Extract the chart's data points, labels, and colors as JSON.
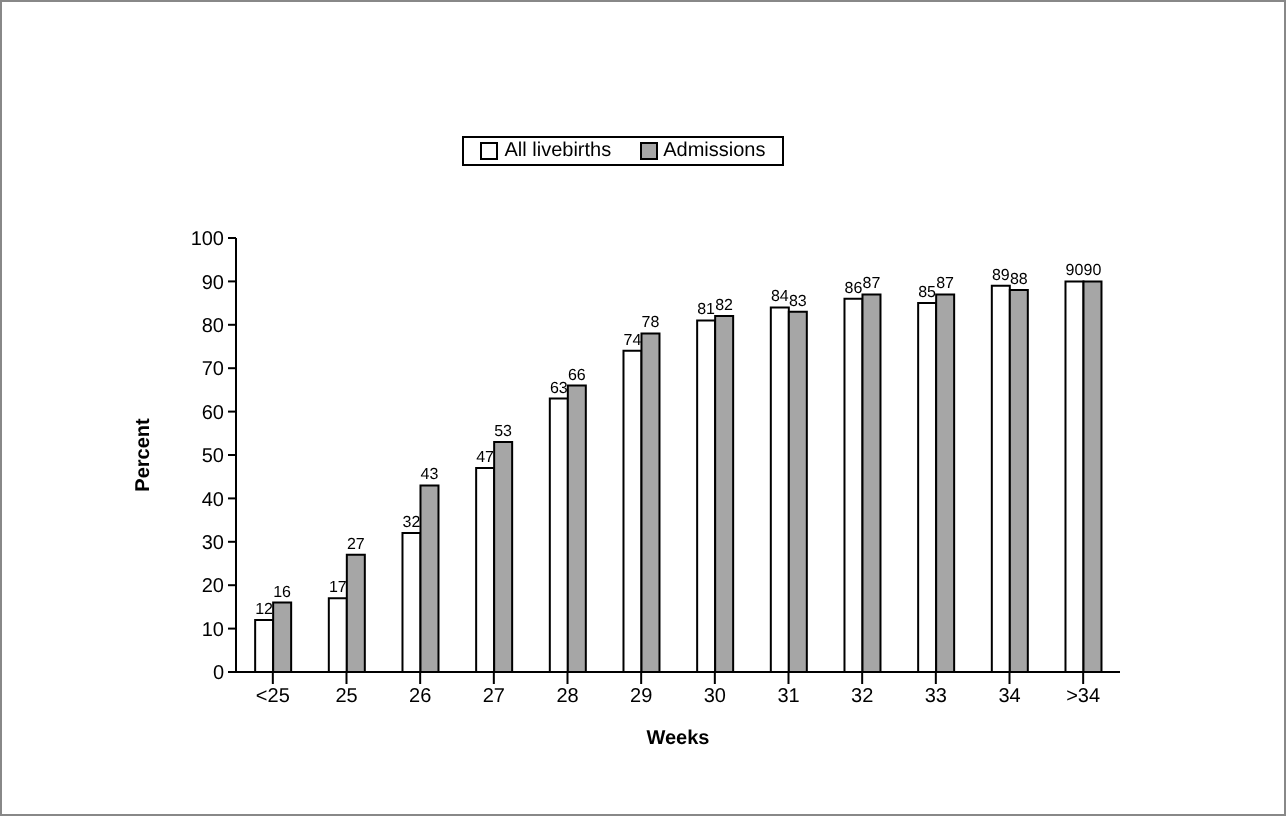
{
  "chart_data": {
    "type": "bar",
    "xlabel": "Weeks",
    "ylabel": "Percent",
    "categories": [
      "<25",
      "25",
      "26",
      "27",
      "28",
      "29",
      "30",
      "31",
      "32",
      "33",
      "34",
      ">34"
    ],
    "series": [
      {
        "name": "All livebirths",
        "color": "#ffffff",
        "values": [
          12,
          17,
          32,
          47,
          63,
          74,
          81,
          84,
          86,
          85,
          89,
          90
        ]
      },
      {
        "name": "Admissions",
        "color": "#a6a6a6",
        "values": [
          16,
          27,
          43,
          53,
          66,
          78,
          82,
          83,
          87,
          87,
          88,
          90
        ]
      }
    ],
    "ylim": [
      0,
      100
    ],
    "yticks": [
      0,
      10,
      20,
      30,
      40,
      50,
      60,
      70,
      80,
      90,
      100
    ],
    "legend": "top",
    "data_labels": true
  }
}
